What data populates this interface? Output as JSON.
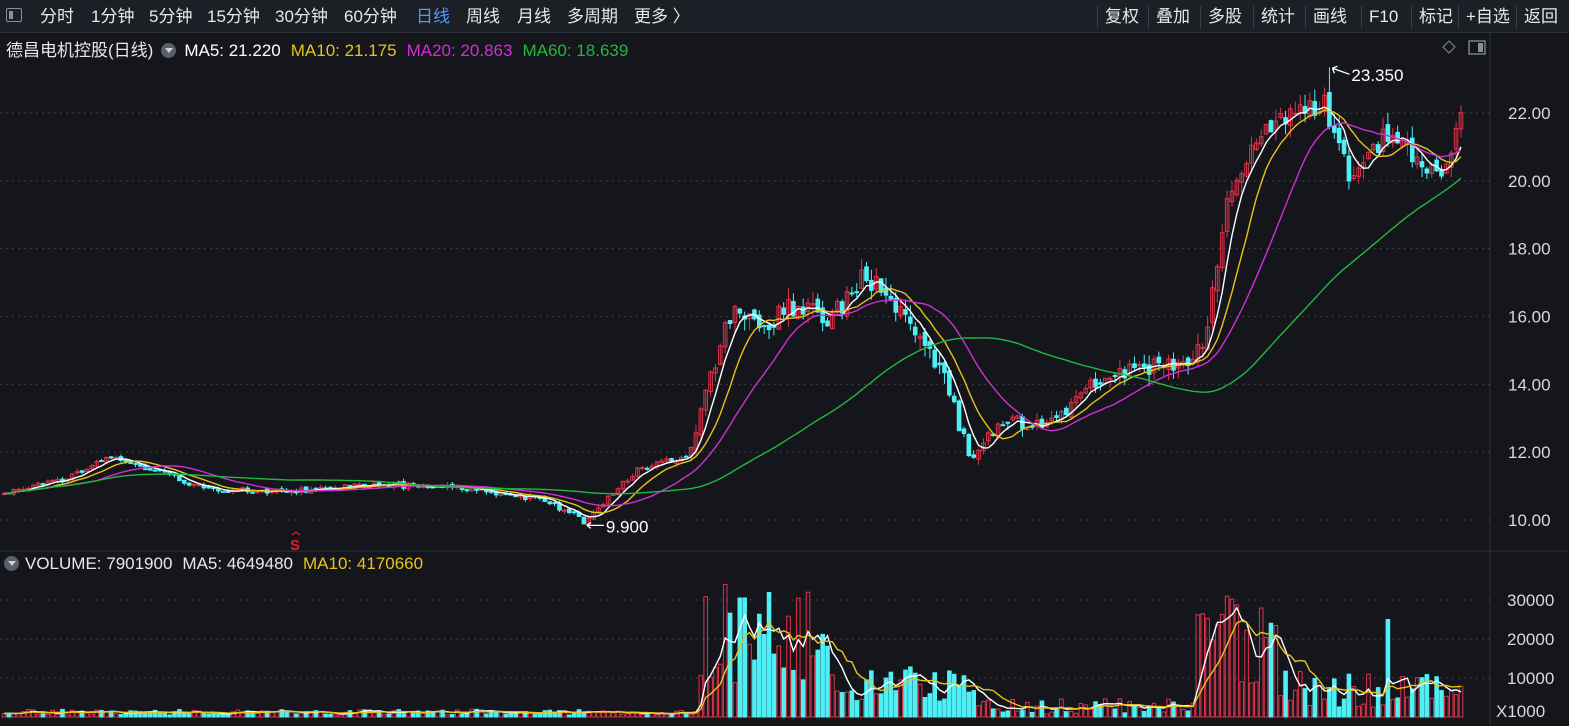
{
  "toolbar": {
    "left_items": [
      {
        "label": "分时"
      },
      {
        "label": "1分钟"
      },
      {
        "label": "5分钟"
      },
      {
        "label": "15分钟"
      },
      {
        "label": "30分钟"
      },
      {
        "label": "60分钟"
      },
      {
        "label": "日线",
        "active": true
      },
      {
        "label": "周线"
      },
      {
        "label": "月线"
      },
      {
        "label": "多周期"
      },
      {
        "label": "更多 〉"
      }
    ],
    "right_items": [
      {
        "label": "复权"
      },
      {
        "label": "叠加"
      },
      {
        "label": "多股"
      },
      {
        "label": "统计"
      },
      {
        "label": "画线"
      },
      {
        "label": "F10"
      },
      {
        "label": "标记"
      },
      {
        "label": "+自选"
      },
      {
        "label": "返回"
      }
    ]
  },
  "price_legend": {
    "title": "德昌电机控股(日线)",
    "ma5": "MA5: 21.220",
    "ma10": "MA10: 21.175",
    "ma20": "MA20: 20.863",
    "ma60": "MA60: 18.639"
  },
  "volume_legend": {
    "volume": "VOLUME: 7901900",
    "ma5": "MA5: 4649480",
    "ma10": "MA10: 4170660"
  },
  "colors": {
    "up": "#e0334a",
    "down": "#4ef0f5",
    "ma5": "#ffffff",
    "ma10": "#e8c21e",
    "ma20": "#d22ed6",
    "ma60": "#22b83c",
    "background": "#14161c"
  },
  "chart_data": {
    "type": "candlestick",
    "price_axis": {
      "ticks": [
        "22.00",
        "20.00",
        "18.00",
        "16.00",
        "14.00",
        "12.00",
        "10.00"
      ],
      "range": [
        9.0,
        23.6
      ]
    },
    "volume_axis": {
      "ticks": [
        "30000",
        "20000",
        "10000"
      ],
      "unit_label": "X1000",
      "range": [
        0,
        35000
      ]
    },
    "annotations": {
      "high": "23.350",
      "low": "9.900",
      "signal_marker": "S"
    },
    "high_value": 23.35,
    "low_value": 9.9,
    "series_close_reference": {
      "ma5_last": 21.22,
      "ma10_last": 21.175,
      "ma20_last": 20.863,
      "ma60_last": 18.639,
      "volume_last": 7901900,
      "volume_ma5_last": 4649480,
      "volume_ma10_last": 4170660
    }
  }
}
